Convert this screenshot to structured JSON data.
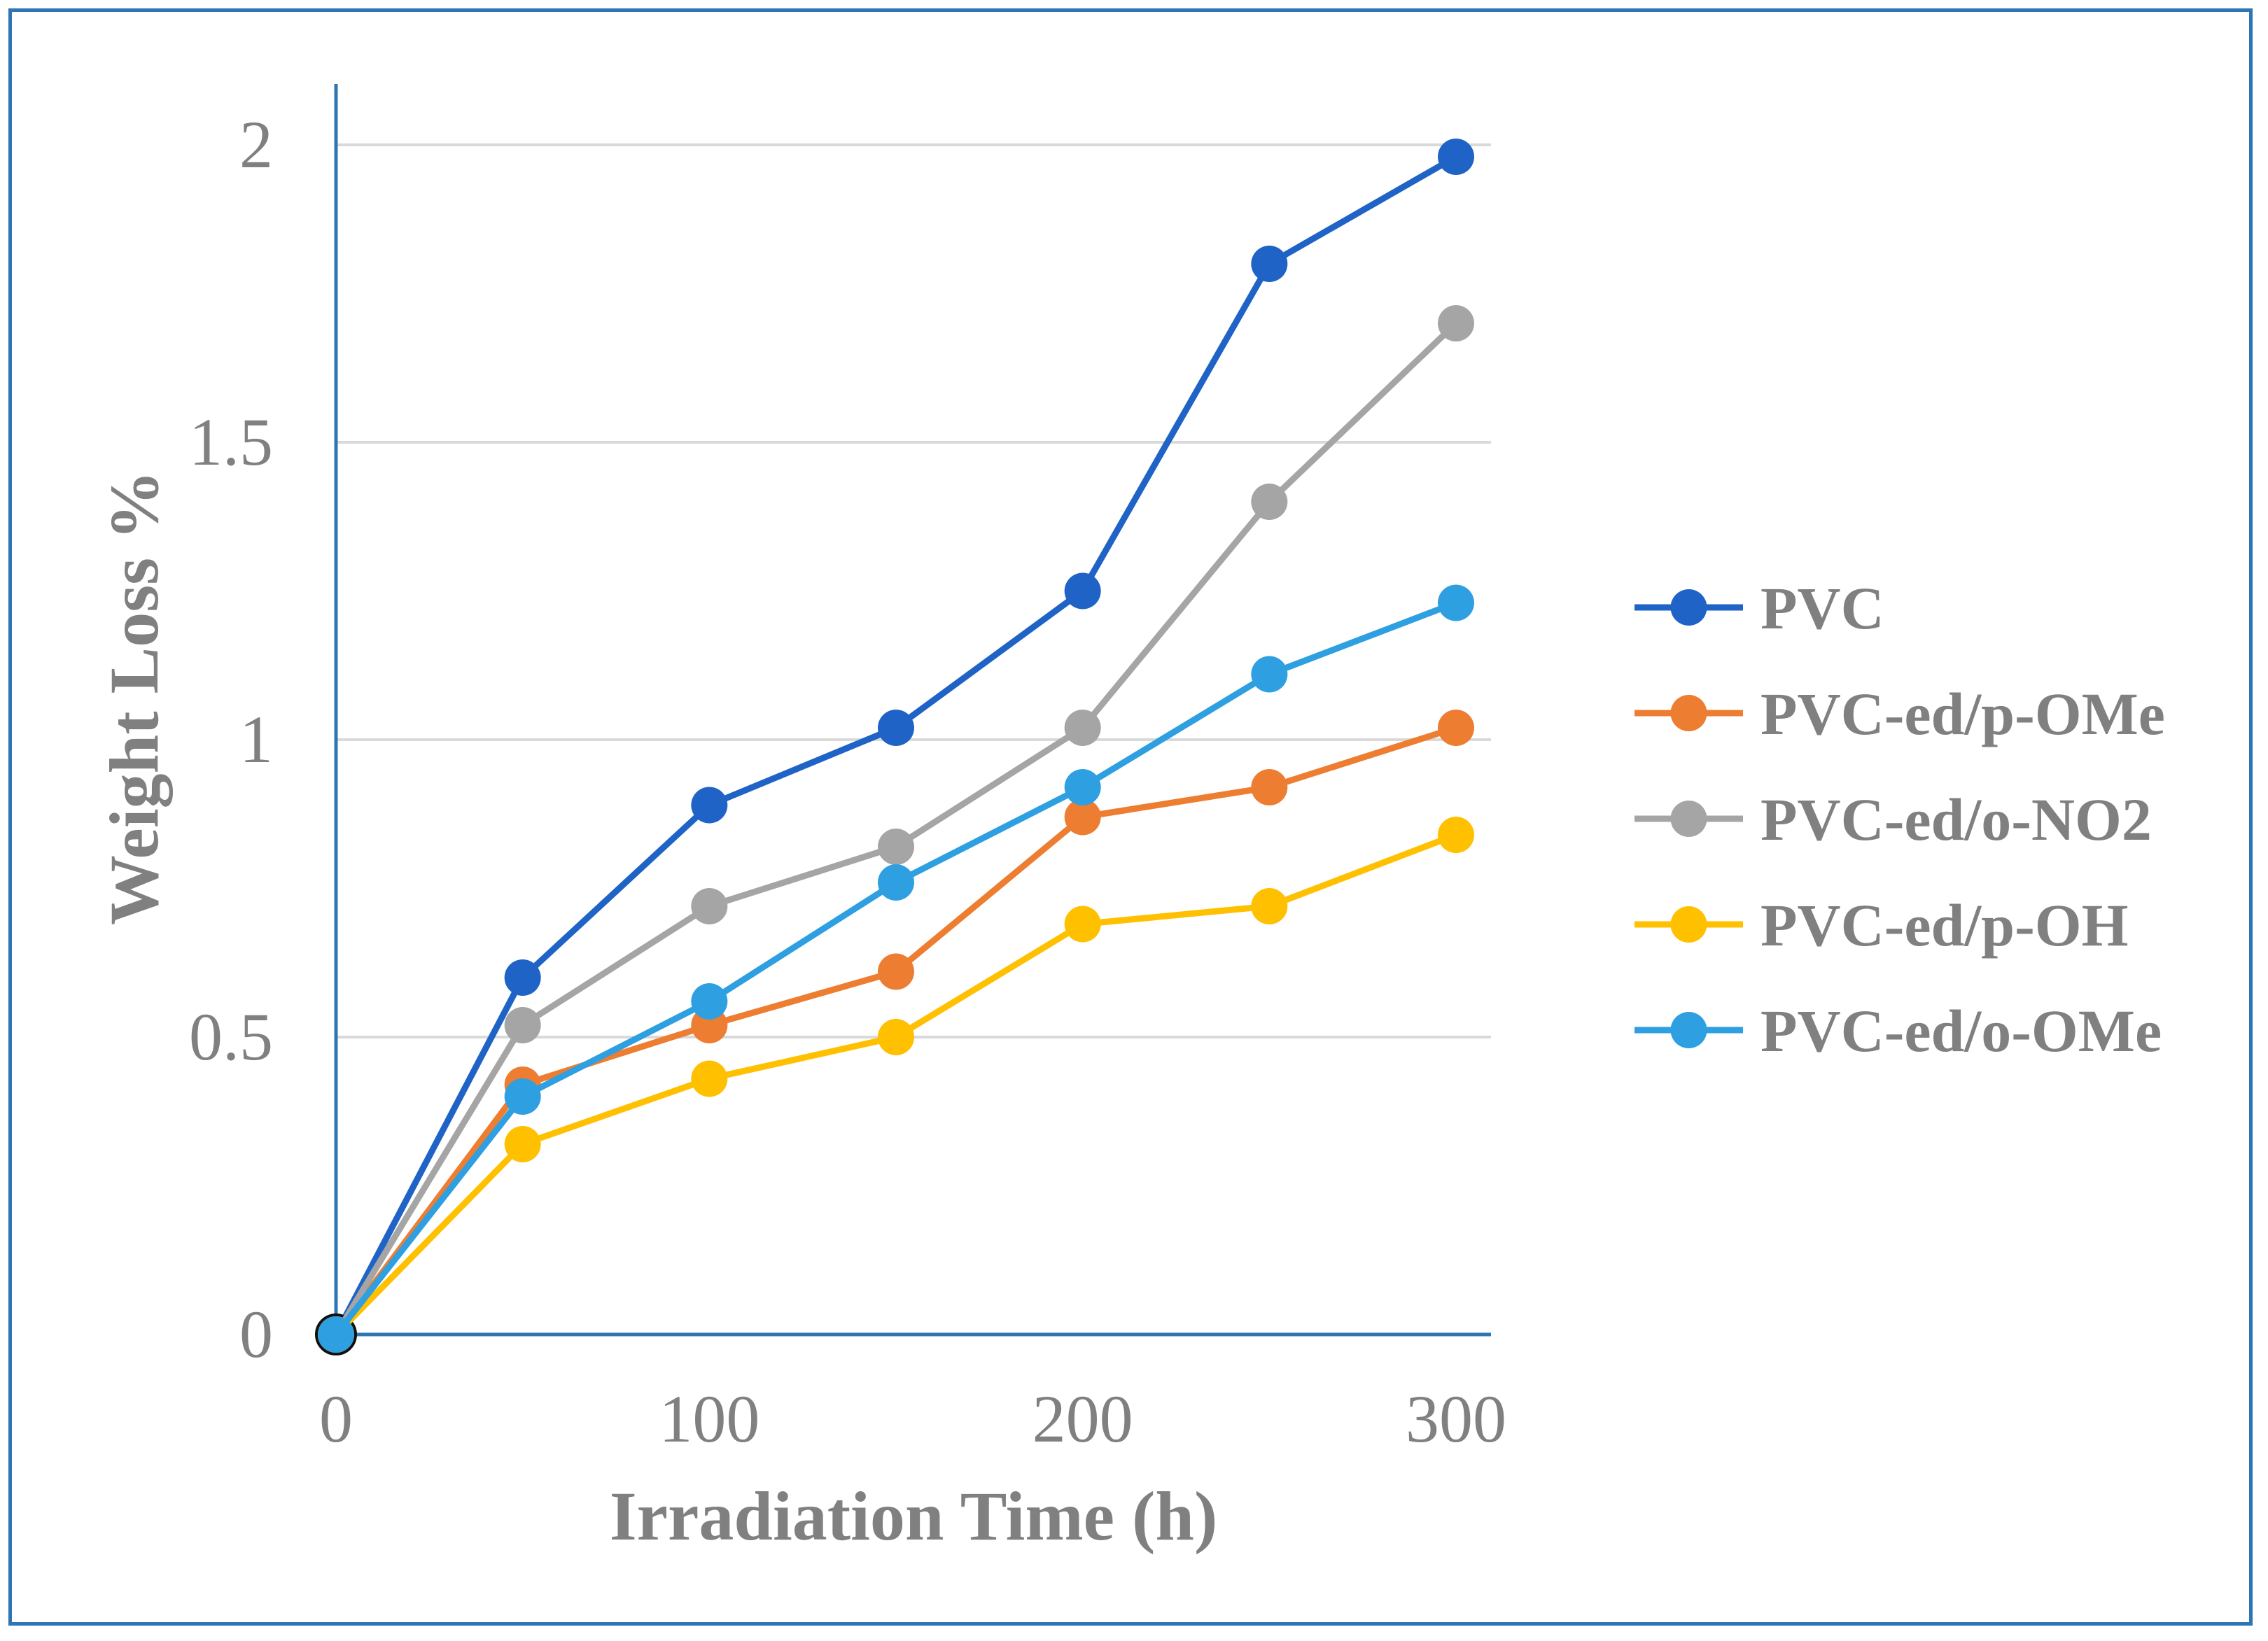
{
  "chart_data": {
    "type": "line",
    "title": "",
    "xlabel": "Irradiation Time (h)",
    "ylabel": "Weight Loss %",
    "x": [
      0,
      50,
      100,
      150,
      200,
      250,
      300
    ],
    "xlim": [
      0,
      300
    ],
    "ylim": [
      0,
      2
    ],
    "xticks": [
      "0",
      "100",
      "200",
      "300"
    ],
    "yticks": [
      "0",
      "0.5",
      "1",
      "1.5",
      "2"
    ],
    "grid": true,
    "legend": "right",
    "series": [
      {
        "name": "PVC",
        "color": "#1f63c6",
        "values": [
          0,
          0.6,
          0.89,
          1.02,
          1.25,
          1.8,
          1.98
        ]
      },
      {
        "name": "PVC-ed/p-OMe",
        "color": "#ed7d31",
        "values": [
          0,
          0.42,
          0.52,
          0.61,
          0.87,
          0.92,
          1.02
        ]
      },
      {
        "name": "PVC-ed/o-NO2",
        "color": "#a5a5a5",
        "values": [
          0,
          0.52,
          0.72,
          0.82,
          1.02,
          1.4,
          1.7
        ]
      },
      {
        "name": "PVC-ed/p-OH",
        "color": "#ffc000",
        "values": [
          0,
          0.32,
          0.43,
          0.5,
          0.69,
          0.72,
          0.84
        ]
      },
      {
        "name": "PVC-ed/o-OMe",
        "color": "#2e9fe0",
        "values": [
          0,
          0.4,
          0.56,
          0.76,
          0.92,
          1.11,
          1.23
        ]
      }
    ]
  }
}
